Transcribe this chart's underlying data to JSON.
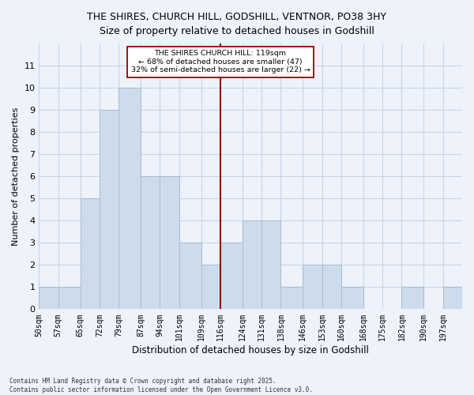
{
  "title": "THE SHIRES, CHURCH HILL, GODSHILL, VENTNOR, PO38 3HY",
  "subtitle": "Size of property relative to detached houses in Godshill",
  "xlabel": "Distribution of detached houses by size in Godshill",
  "ylabel": "Number of detached properties",
  "footnote1": "Contains HM Land Registry data © Crown copyright and database right 2025.",
  "footnote2": "Contains public sector information licensed under the Open Government Licence v3.0.",
  "bin_labels": [
    "50sqm",
    "57sqm",
    "65sqm",
    "72sqm",
    "79sqm",
    "87sqm",
    "94sqm",
    "101sqm",
    "109sqm",
    "116sqm",
    "124sqm",
    "131sqm",
    "138sqm",
    "146sqm",
    "153sqm",
    "160sqm",
    "168sqm",
    "175sqm",
    "182sqm",
    "190sqm",
    "197sqm"
  ],
  "bar_heights": [
    1,
    1,
    5,
    9,
    10,
    6,
    6,
    3,
    2,
    3,
    4,
    4,
    1,
    2,
    2,
    1,
    0,
    0,
    1,
    0,
    1
  ],
  "bar_color": "#ccdcec",
  "bar_edge_color": "#aabccc",
  "vline_x_label": "116sqm",
  "vline_color": "#990000",
  "annotation_text": "THE SHIRES CHURCH HILL: 119sqm\n← 68% of detached houses are smaller (47)\n32% of semi-detached houses are larger (22) →",
  "annotation_box_color": "white",
  "annotation_box_edge": "#990000",
  "ylim": [
    0,
    12
  ],
  "yticks": [
    0,
    1,
    2,
    3,
    4,
    5,
    6,
    7,
    8,
    9,
    10,
    11,
    12
  ],
  "grid_color": "#c8d4e8",
  "background_color": "#eef2fb",
  "plot_bg_color": "#eef2fb",
  "title_fontsize": 9,
  "subtitle_fontsize": 9
}
